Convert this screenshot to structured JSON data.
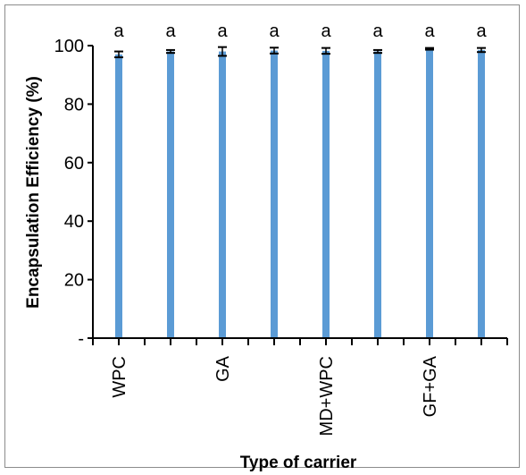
{
  "chart_data": {
    "type": "bar",
    "categories": [
      "WPC",
      "",
      "GA",
      "",
      "MD+WPC",
      "",
      "GF+GA",
      ""
    ],
    "values": [
      97.0,
      98.0,
      98.0,
      98.3,
      98.2,
      98.0,
      98.9,
      98.5
    ],
    "errors": [
      1.0,
      0.5,
      1.5,
      1.0,
      1.0,
      0.5,
      0.3,
      0.7
    ],
    "significance": [
      "a",
      "a",
      "a",
      "a",
      "a",
      "a",
      "a",
      "a"
    ],
    "title": "",
    "xlabel": "Type of carrier",
    "ylabel": "Encapsulation  Efficiency (%)",
    "ylim": [
      0,
      100
    ],
    "yticks": [
      0,
      20,
      40,
      60,
      80,
      100
    ],
    "ytick_labels": [
      "-",
      "20",
      "40",
      "60",
      "80",
      "100"
    ],
    "grid": false,
    "colors": {
      "bar": "#5b9bd5",
      "error_bar": "#000000",
      "axis": "#000000"
    }
  }
}
